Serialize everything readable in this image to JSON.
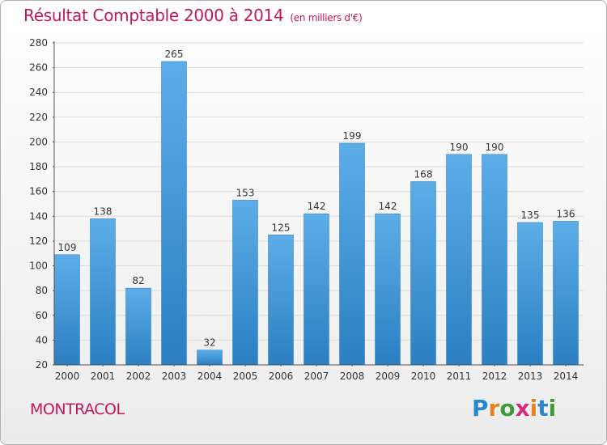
{
  "title": "Résultat Comptable 2000 à 2014",
  "subtitle": "(en milliers d'€)",
  "commune": "MONTRACOL",
  "logo": {
    "letters": [
      "P",
      "r",
      "o",
      "x",
      "i",
      "t",
      "i"
    ],
    "colors": [
      "#2b88cf",
      "#e8821e",
      "#3f9b3a",
      "#d42b7a",
      "#e8821e",
      "#2b88cf",
      "#3f9b3a"
    ]
  },
  "colors": {
    "bar_light": "#5dade8",
    "bar_dark": "#2b7fc2",
    "grid": "#dcdcdc",
    "text": "#333333"
  },
  "chart_data": {
    "type": "bar",
    "categories": [
      "2000",
      "2001",
      "2002",
      "2003",
      "2004",
      "2005",
      "2006",
      "2007",
      "2008",
      "2009",
      "2010",
      "2011",
      "2012",
      "2013",
      "2014"
    ],
    "values": [
      109,
      138,
      82,
      265,
      32,
      153,
      125,
      142,
      199,
      142,
      168,
      190,
      190,
      135,
      136
    ],
    "ylim": [
      20,
      280
    ],
    "yticks": [
      20,
      40,
      60,
      80,
      100,
      120,
      140,
      160,
      180,
      200,
      220,
      240,
      260,
      280
    ],
    "grid": true
  }
}
